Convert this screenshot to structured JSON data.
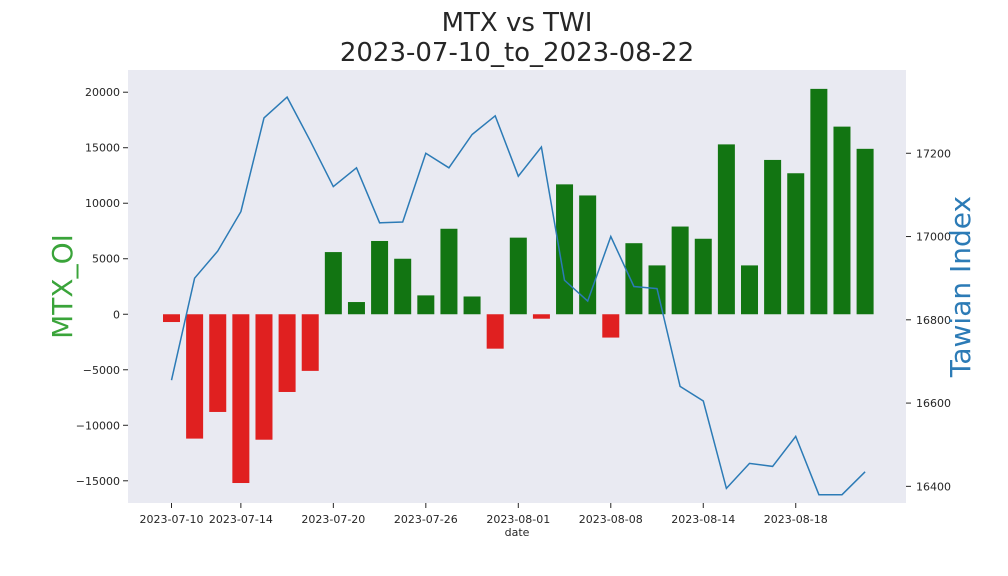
{
  "chart_data": {
    "type": "bar+line",
    "title_line1": "MTX vs TWI",
    "title_line2": "2023-07-10_to_2023-08-22",
    "xlabel": "date",
    "ylabel_left": "MTX_OI",
    "ylabel_right": "Tawian Index",
    "x_ticks": [
      "2023-07-10",
      "2023-07-14",
      "2023-07-20",
      "2023-07-26",
      "2023-08-01",
      "2023-08-08",
      "2023-08-14",
      "2023-08-18"
    ],
    "x_tick_indices": [
      0,
      3,
      7,
      11,
      15,
      19,
      23,
      27
    ],
    "y_left_ticks": [
      20000,
      15000,
      10000,
      5000,
      0,
      -5000,
      -10000,
      -15000
    ],
    "y_left_tick_labels": [
      "20000",
      "15000",
      "10000",
      "5000",
      "0",
      "−5000",
      "−10000",
      "−15000"
    ],
    "y_left_lim": [
      -17000,
      22000
    ],
    "y_right_ticks": [
      17200,
      17000,
      16800,
      16600,
      16400
    ],
    "y_right_lim": [
      16360,
      17400
    ],
    "grid": false,
    "positive_color": "#127512",
    "negative_color": "#e02020",
    "line_color": "#2c7bb6",
    "left_label_color": "#3aa43a",
    "right_label_color": "#2c7bb6",
    "background": "#e9eaf2",
    "series": [
      {
        "name": "MTX_OI",
        "type": "bar",
        "values": [
          -700,
          -11200,
          -8800,
          -15200,
          -11300,
          -7000,
          -5100,
          5600,
          1100,
          6600,
          5000,
          1700,
          7700,
          1600,
          -3100,
          6900,
          -400,
          11700,
          10700,
          -2100,
          6400,
          4400,
          7900,
          6800,
          15300,
          4400,
          13900,
          12700,
          20300,
          16900,
          14900
        ]
      },
      {
        "name": "Tawian Index",
        "type": "line",
        "values": [
          16655,
          16900,
          16965,
          17060,
          17285,
          17335,
          17230,
          17120,
          17165,
          17033,
          17035,
          17200,
          17165,
          17245,
          17290,
          17145,
          17215,
          16895,
          16845,
          17000,
          16880,
          16875,
          16640,
          16605,
          16395,
          16455,
          16448,
          16520,
          16380,
          16380,
          16435
        ]
      }
    ]
  }
}
